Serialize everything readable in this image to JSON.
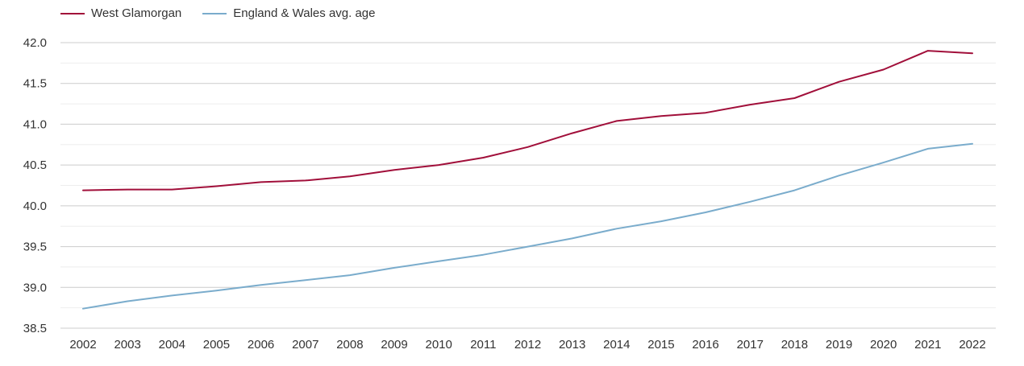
{
  "chart_data": {
    "type": "line",
    "title": "",
    "xlabel": "",
    "ylabel": "",
    "x": [
      2002,
      2003,
      2004,
      2005,
      2006,
      2007,
      2008,
      2009,
      2010,
      2011,
      2012,
      2013,
      2014,
      2015,
      2016,
      2017,
      2018,
      2019,
      2020,
      2021,
      2022
    ],
    "ylim": [
      38.5,
      42.0
    ],
    "yticks": [
      "42.0",
      "41.5",
      "41.0",
      "40.5",
      "40.0",
      "39.5",
      "39.0",
      "38.5"
    ],
    "grid": true,
    "legend_position": "top-left",
    "series": [
      {
        "name": "West Glamorgan",
        "color": "#a10f3a",
        "values": [
          40.19,
          40.2,
          40.2,
          40.24,
          40.29,
          40.31,
          40.36,
          40.44,
          40.5,
          40.59,
          40.72,
          40.89,
          41.04,
          41.1,
          41.14,
          41.24,
          41.32,
          41.52,
          41.67,
          41.9,
          41.87
        ]
      },
      {
        "name": "England & Wales avg. age",
        "color": "#7aaccc",
        "values": [
          38.74,
          38.83,
          38.9,
          38.96,
          39.03,
          39.09,
          39.15,
          39.24,
          39.32,
          39.4,
          39.5,
          39.6,
          39.72,
          39.81,
          39.92,
          40.05,
          40.19,
          40.37,
          40.53,
          40.7,
          40.76
        ]
      }
    ]
  }
}
